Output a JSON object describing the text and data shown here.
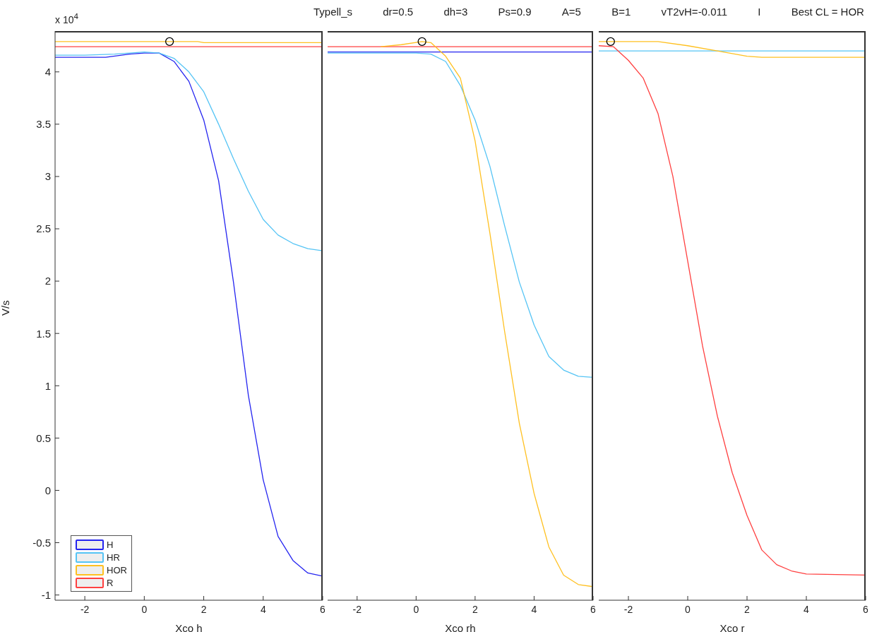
{
  "chart_data": [
    {
      "type": "line",
      "xlabel": "Xco h",
      "ylabel": "V/s",
      "annotations": [
        "x 10$^{4}$"
      ],
      "xlim": [
        -3,
        6
      ],
      "xticks": [
        -2,
        0,
        2,
        4,
        6
      ],
      "ylim": [
        -1.05,
        4.39
      ],
      "yticks": [
        -1,
        -0.5,
        0,
        0.5,
        1,
        1.5,
        2,
        2.5,
        3,
        3.5,
        4
      ],
      "legend": "bottom left",
      "series": [
        {
          "name": "H",
          "color": "#2424f0",
          "x": [
            -3,
            -2,
            -1.3,
            -0.5,
            0,
            0.5,
            1,
            1.5,
            2,
            2.5,
            3,
            3.5,
            4,
            4.5,
            5,
            5.5,
            6
          ],
          "values": [
            4.14,
            4.14,
            4.14,
            4.17,
            4.18,
            4.18,
            4.1,
            3.91,
            3.54,
            2.96,
            1.99,
            0.91,
            0.1,
            -0.44,
            -0.67,
            -0.79,
            -0.82
          ]
        },
        {
          "name": "HR",
          "color": "#55c4f5",
          "x": [
            -3,
            -2,
            -1,
            -0.5,
            0,
            0.5,
            1,
            1.5,
            2,
            2.5,
            3,
            3.5,
            4,
            4.5,
            5,
            5.5,
            6
          ],
          "values": [
            4.16,
            4.16,
            4.17,
            4.18,
            4.19,
            4.18,
            4.13,
            4.0,
            3.81,
            3.5,
            3.17,
            2.86,
            2.59,
            2.44,
            2.36,
            2.31,
            2.29
          ]
        },
        {
          "name": "HOR",
          "color": "#ffc020",
          "x": [
            -3,
            1.8,
            2,
            6
          ],
          "values": [
            4.29,
            4.29,
            4.28,
            4.28
          ]
        },
        {
          "name": "R",
          "color": "#ff4040",
          "x": [
            -3,
            6
          ],
          "values": [
            4.24,
            4.24
          ]
        },
        {
          "type": "scatter",
          "marker": "circle",
          "color": "#000000",
          "x": [
            0.85
          ],
          "values": [
            4.29
          ]
        }
      ]
    },
    {
      "type": "line",
      "xlabel": "Xco rh",
      "tick_labels": "x",
      "xlim": [
        -3,
        6
      ],
      "xticks": [
        -2,
        0,
        2,
        4,
        6
      ],
      "ylim": [
        -1.05,
        4.39
      ],
      "yticks": [
        -1,
        -0.5,
        0,
        0.5,
        1,
        1.5,
        2,
        2.5,
        3,
        3.5,
        4
      ],
      "series": [
        {
          "color": "#2424f0",
          "x": [
            -3,
            6
          ],
          "values": [
            4.19,
            4.19
          ]
        },
        {
          "color": "#55c4f5",
          "x": [
            -3,
            0,
            0.5,
            1,
            1.5,
            2,
            2.5,
            3,
            3.5,
            4,
            4.5,
            5,
            5.5,
            6
          ],
          "values": [
            4.18,
            4.18,
            4.17,
            4.1,
            3.87,
            3.54,
            3.1,
            2.53,
            1.99,
            1.58,
            1.28,
            1.15,
            1.09,
            1.08
          ]
        },
        {
          "color": "#ff4040",
          "x": [
            -3,
            6
          ],
          "values": [
            4.24,
            4.24
          ]
        },
        {
          "color": "#ffc020",
          "x": [
            -1.2,
            -0.5,
            0.2,
            0.5,
            1,
            1.5,
            2,
            2.5,
            3,
            3.5,
            4,
            4.5,
            5,
            5.5,
            6
          ],
          "values": [
            4.24,
            4.26,
            4.29,
            4.28,
            4.15,
            3.94,
            3.34,
            2.46,
            1.52,
            0.64,
            -0.03,
            -0.54,
            -0.81,
            -0.9,
            -0.92
          ]
        },
        {
          "type": "scatter",
          "marker": "circle",
          "color": "#000000",
          "x": [
            0.2
          ],
          "values": [
            4.29
          ]
        }
      ]
    },
    {
      "type": "line",
      "xlabel": "Xco r",
      "tick_labels": "x",
      "annotations": [
        "Typell_s",
        "dr=0.5",
        "dh=3",
        "Ps=0.9",
        "A=5",
        "B=1",
        "vT2vH=-0.011",
        "I",
        "Best CL = HOR"
      ],
      "xlim": [
        -3,
        6
      ],
      "xticks": [
        -2,
        0,
        2,
        4,
        6
      ],
      "ylim": [
        -1.05,
        4.39
      ],
      "yticks": [
        -1,
        -0.5,
        0,
        0.5,
        1,
        1.5,
        2,
        2.5,
        3,
        3.5,
        4
      ],
      "series": [
        {
          "color": "#55c4f5",
          "x": [
            -3,
            6
          ],
          "values": [
            4.2,
            4.2
          ]
        },
        {
          "color": "#ffc020",
          "x": [
            -3,
            -1,
            0,
            1,
            2,
            2.5,
            6
          ],
          "values": [
            4.29,
            4.29,
            4.25,
            4.2,
            4.15,
            4.14,
            4.14
          ]
        },
        {
          "color": "#ff4040",
          "x": [
            -3,
            -2.5,
            -2,
            -1.5,
            -1,
            -0.5,
            0,
            0.5,
            1,
            1.5,
            2,
            2.5,
            3,
            3.5,
            4,
            6
          ],
          "values": [
            4.25,
            4.24,
            4.11,
            3.94,
            3.6,
            3.0,
            2.19,
            1.38,
            0.71,
            0.17,
            -0.24,
            -0.57,
            -0.71,
            -0.77,
            -0.8,
            -0.81
          ]
        },
        {
          "type": "scatter",
          "marker": "circle",
          "color": "#000000",
          "x": [
            -2.6
          ],
          "values": [
            4.29
          ]
        }
      ]
    }
  ]
}
